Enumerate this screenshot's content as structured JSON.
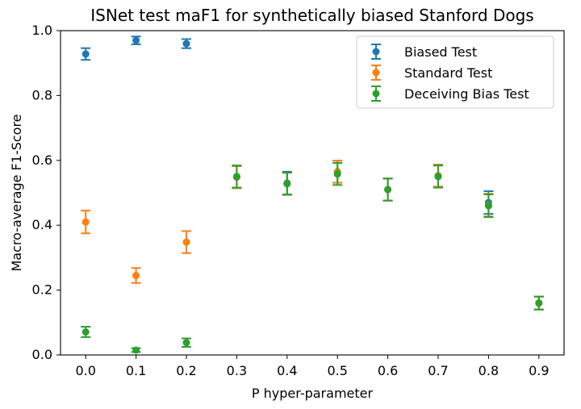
{
  "chart_data": {
    "type": "scatter",
    "title": "ISNet test maF1 for synthetically biased Stanford Dogs",
    "xlabel": "P hyper-parameter",
    "ylabel": "Macro-average F1-Score",
    "xlim": [
      -0.05,
      0.95
    ],
    "ylim": [
      0.0,
      1.0
    ],
    "xticks": [
      "0.0",
      "0.1",
      "0.2",
      "0.3",
      "0.4",
      "0.5",
      "0.6",
      "0.7",
      "0.8",
      "0.9"
    ],
    "yticks": [
      "0.0",
      "0.2",
      "0.4",
      "0.6",
      "0.8",
      "1.0"
    ],
    "legend_position": "top-right",
    "series": [
      {
        "name": "Biased Test",
        "color": "#1f77b4",
        "x": [
          0.0,
          0.1,
          0.2,
          0.3,
          0.4,
          0.5,
          0.6,
          0.7,
          0.8,
          0.9
        ],
        "values": [
          0.928,
          0.97,
          0.96,
          0.55,
          0.53,
          0.565,
          0.51,
          0.553,
          0.47,
          0.16
        ],
        "errors": [
          0.018,
          0.012,
          0.014,
          0.034,
          0.035,
          0.034,
          0.034,
          0.034,
          0.035,
          0.02
        ]
      },
      {
        "name": "Standard Test",
        "color": "#ff7f0e",
        "x": [
          0.0,
          0.1,
          0.2,
          0.3,
          0.4,
          0.5,
          0.6,
          0.7,
          0.8,
          0.9
        ],
        "values": [
          0.41,
          0.245,
          0.348,
          0.548,
          0.528,
          0.565,
          0.51,
          0.553,
          0.462,
          0.16
        ],
        "errors": [
          0.035,
          0.023,
          0.034,
          0.034,
          0.034,
          0.034,
          0.034,
          0.034,
          0.035,
          0.02
        ]
      },
      {
        "name": "Deceiving Bias Test",
        "color": "#2ca02c",
        "x": [
          0.0,
          0.1,
          0.2,
          0.3,
          0.4,
          0.5,
          0.6,
          0.7,
          0.8,
          0.9
        ],
        "values": [
          0.071,
          0.015,
          0.038,
          0.55,
          0.528,
          0.558,
          0.51,
          0.55,
          0.46,
          0.16
        ],
        "errors": [
          0.016,
          0.006,
          0.013,
          0.034,
          0.034,
          0.034,
          0.034,
          0.034,
          0.035,
          0.02
        ]
      }
    ]
  }
}
